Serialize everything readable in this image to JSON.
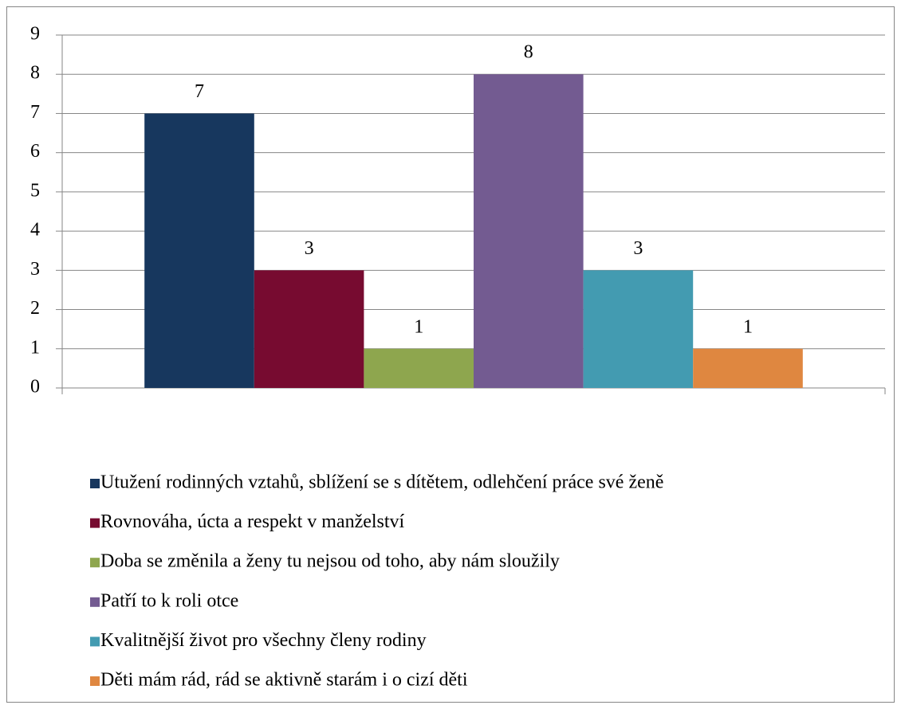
{
  "chart_data": {
    "type": "bar",
    "categories": [
      null
    ],
    "series": [
      {
        "name": "Utužení rodinných vztahů, sblížení se s dítětem, odlehčení práce své ženě",
        "color": "#17375e",
        "values": [
          7
        ]
      },
      {
        "name": "Rovnováha, úcta a respekt v manželství",
        "color": "#770b30",
        "values": [
          3
        ]
      },
      {
        "name": "Doba se změnila a ženy tu nejsou od toho, aby nám sloužily",
        "color": "#8ea64e",
        "values": [
          1
        ]
      },
      {
        "name": "Patří to k roli otce",
        "color": "#735b91",
        "values": [
          8
        ]
      },
      {
        "name": "Kvalitnější život pro všechny členy rodiny",
        "color": "#439bb1",
        "values": [
          3
        ]
      },
      {
        "name": "Děti mám rád, rád se aktivně starám i o cizí děti",
        "color": "#df8740",
        "values": [
          1
        ]
      }
    ],
    "ylim": [
      0,
      9
    ],
    "yticks": [
      0,
      1,
      2,
      3,
      4,
      5,
      6,
      7,
      8,
      9
    ],
    "grid": true,
    "legend": "bottom"
  }
}
